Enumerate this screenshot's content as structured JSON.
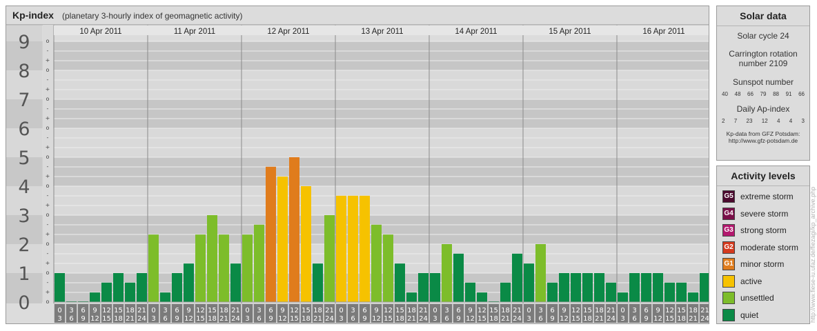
{
  "title": {
    "main": "Kp-index",
    "sub": "(planetary 3-hourly index of geomagnetic activity)"
  },
  "chart_data": {
    "type": "bar",
    "title": "Kp-index",
    "subtitle": "(planetary 3-hourly index of geomagnetic activity)",
    "ylim": [
      0,
      9
    ],
    "y_ticks": [
      "0",
      "1",
      "2",
      "3",
      "4",
      "5",
      "6",
      "7",
      "8",
      "9"
    ],
    "minor_tick_labels": [
      "o",
      "+",
      "-"
    ],
    "days": [
      "10 Apr 2011",
      "11 Apr 2011",
      "12 Apr 2011",
      "13 Apr 2011",
      "14 Apr 2011",
      "15 Apr 2011",
      "16 Apr 2011"
    ],
    "interval_start_labels": [
      "0",
      "3",
      "6",
      "9",
      "12",
      "15",
      "18",
      "21"
    ],
    "interval_end_labels": [
      "3",
      "6",
      "9",
      "12",
      "15",
      "18",
      "21",
      "24"
    ],
    "values": [
      [
        1.0,
        0.0,
        0.0,
        0.33,
        0.67,
        1.0,
        0.67,
        1.0
      ],
      [
        2.33,
        0.33,
        1.0,
        1.33,
        2.33,
        3.0,
        2.33,
        1.33
      ],
      [
        2.33,
        2.67,
        4.67,
        4.33,
        5.0,
        4.0,
        1.33,
        3.0
      ],
      [
        3.67,
        3.67,
        3.67,
        2.67,
        2.33,
        1.33,
        0.33,
        1.0
      ],
      [
        1.0,
        2.0,
        1.67,
        0.67,
        0.33,
        0.0,
        0.67,
        1.67
      ],
      [
        1.33,
        2.0,
        0.67,
        1.0,
        1.0,
        1.0,
        1.0,
        0.67
      ],
      [
        0.33,
        1.0,
        1.0,
        1.0,
        0.67,
        0.67,
        0.33,
        1.0
      ]
    ],
    "grid": true
  },
  "levels": {
    "title": "Activity levels",
    "items": [
      {
        "code": "G5",
        "label": "extreme storm",
        "color": "#4b0a2e"
      },
      {
        "code": "G4",
        "label": "severe storm",
        "color": "#7a0f49"
      },
      {
        "code": "G3",
        "label": "strong storm",
        "color": "#b3186e"
      },
      {
        "code": "G2",
        "label": "moderate storm",
        "color": "#d53a1e"
      },
      {
        "code": "G1",
        "label": "minor storm",
        "color": "#e07c1c"
      },
      {
        "code": "",
        "label": "active",
        "color": "#f6c200"
      },
      {
        "code": "",
        "label": "unsettled",
        "color": "#7dbd2a"
      },
      {
        "code": "",
        "label": "quiet",
        "color": "#0a8a46"
      }
    ]
  },
  "solar": {
    "title": "Solar data",
    "cycle": "Solar cycle 24",
    "carrington_line1": "Carrington rotation",
    "carrington_line2": "number 2109",
    "sunspot_title": "Sunspot number",
    "sunspot_values": [
      "40",
      "48",
      "66",
      "79",
      "88",
      "91",
      "66"
    ],
    "ap_title": "Daily Ap-index",
    "ap_values": [
      "2",
      "7",
      "23",
      "12",
      "4",
      "4",
      "3"
    ],
    "source_line1": "Kp-data from GFZ Potsdam:",
    "source_line2": "http://www.gfz-potsdam.de"
  },
  "credit": "http://www.fiese-iu.ufaz.de/fiezagi/kp_archive.php"
}
